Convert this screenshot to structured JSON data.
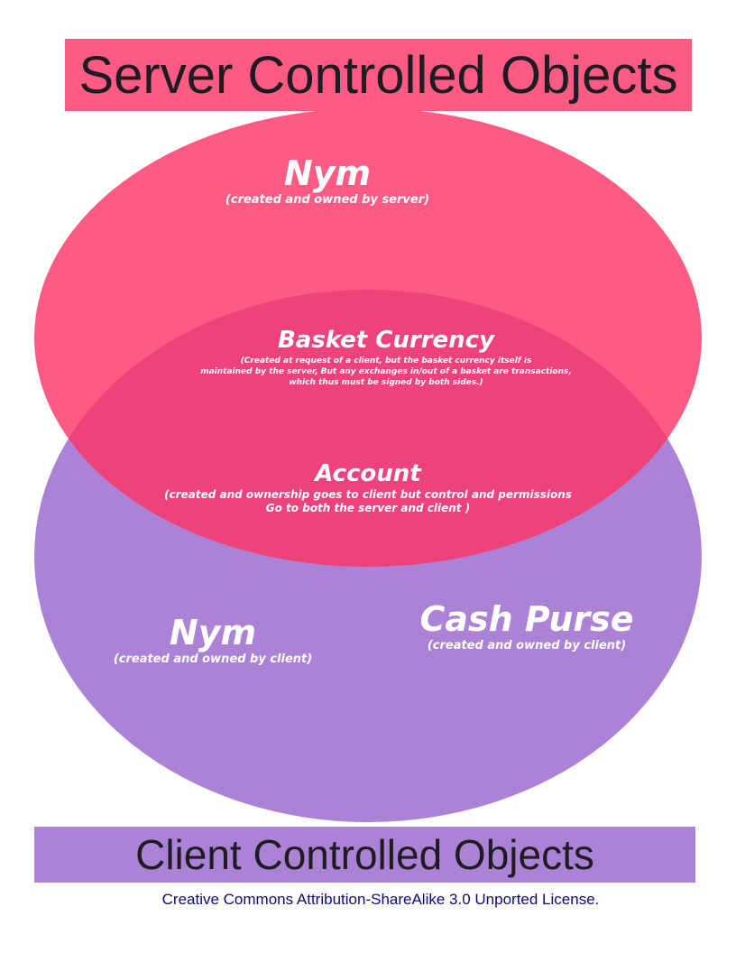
{
  "server_title": "Server Controlled Objects",
  "client_title": "Client Controlled Objects",
  "server_nym": {
    "title": "Nym",
    "note": "(created and owned by server)"
  },
  "basket": {
    "title": "Basket Currency",
    "note_lines": [
      "(Created at request of a client, but the basket currency itself is",
      "maintained by the server, But any exchanges in/out of a basket are transactions,",
      "which thus must be signed by both sides.)"
    ]
  },
  "account": {
    "title": "Account",
    "note_lines": [
      "(created and ownership goes to client but control and permissions",
      "Go to both the server and client )"
    ]
  },
  "client_nym": {
    "title": "Nym",
    "note": "(created and owned by client)"
  },
  "cash_purse": {
    "title": "Cash Purse",
    "note": "(created and owned by client)"
  },
  "license": "Creative Commons Attribution-ShareAlike 3.0 Unported License.",
  "colors": {
    "server": "#fe5b84",
    "client": "#ac82d6",
    "overlap": "#ee427a"
  }
}
